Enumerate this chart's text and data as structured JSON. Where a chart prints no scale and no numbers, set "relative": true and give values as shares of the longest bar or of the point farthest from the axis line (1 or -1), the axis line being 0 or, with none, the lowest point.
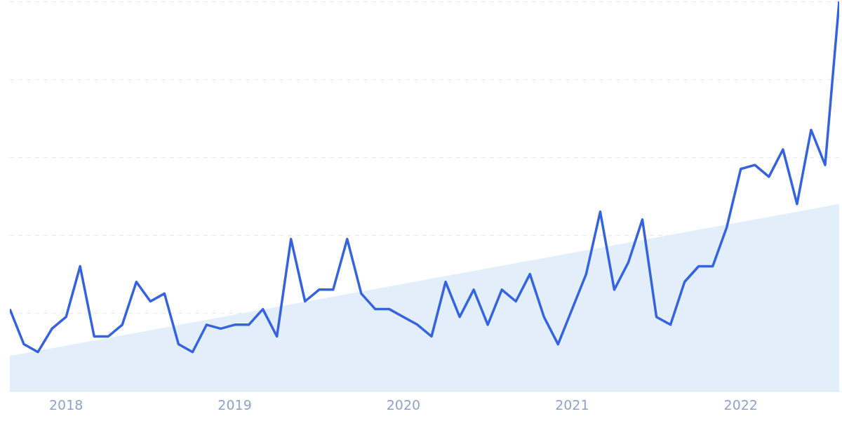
{
  "chart_data": {
    "type": "line",
    "relative": true,
    "grid": "y",
    "legend": false,
    "marker": "none",
    "line_style": "solid",
    "tick_labels": "x",
    "xlim": [
      "2017-09",
      "2022-08"
    ],
    "xticks": [
      "2018",
      "2019",
      "2020",
      "2021",
      "2022"
    ],
    "x": [
      "2017-09",
      "2017-10",
      "2017-11",
      "2017-12",
      "2018-01",
      "2018-02",
      "2018-03",
      "2018-04",
      "2018-05",
      "2018-06",
      "2018-07",
      "2018-08",
      "2018-09",
      "2018-10",
      "2018-11",
      "2018-12",
      "2019-01",
      "2019-02",
      "2019-03",
      "2019-04",
      "2019-05",
      "2019-06",
      "2019-07",
      "2019-08",
      "2019-09",
      "2019-10",
      "2019-11",
      "2019-12",
      "2020-01",
      "2020-02",
      "2020-03",
      "2020-04",
      "2020-05",
      "2020-06",
      "2020-07",
      "2020-08",
      "2020-09",
      "2020-10",
      "2020-11",
      "2020-12",
      "2021-01",
      "2021-02",
      "2021-03",
      "2021-04",
      "2021-05",
      "2021-06",
      "2021-07",
      "2021-08",
      "2021-09",
      "2021-10",
      "2021-11",
      "2021-12",
      "2022-01",
      "2022-02",
      "2022-03",
      "2022-04",
      "2022-05",
      "2022-06",
      "2022-07",
      "2022-08"
    ],
    "series": [
      {
        "type": "area",
        "color": "#e3eefb",
        "x": [
          "2017-09",
          "2022-08"
        ],
        "values": [
          0.09,
          0.48
        ]
      },
      {
        "type": "line",
        "color": "#3563e0",
        "values": [
          0.21,
          0.12,
          0.1,
          0.16,
          0.19,
          0.32,
          0.14,
          0.14,
          0.17,
          0.28,
          0.23,
          0.25,
          0.12,
          0.1,
          0.17,
          0.16,
          0.17,
          0.17,
          0.21,
          0.14,
          0.39,
          0.23,
          0.26,
          0.26,
          0.39,
          0.25,
          0.21,
          0.21,
          0.19,
          0.17,
          0.14,
          0.28,
          0.19,
          0.26,
          0.17,
          0.26,
          0.23,
          0.3,
          0.19,
          0.12,
          0.21,
          0.3,
          0.46,
          0.26,
          0.33,
          0.44,
          0.19,
          0.17,
          0.28,
          0.32,
          0.32,
          0.42,
          0.57,
          0.58,
          0.55,
          0.62,
          0.48,
          0.67,
          0.58,
          1
        ]
      }
    ]
  }
}
